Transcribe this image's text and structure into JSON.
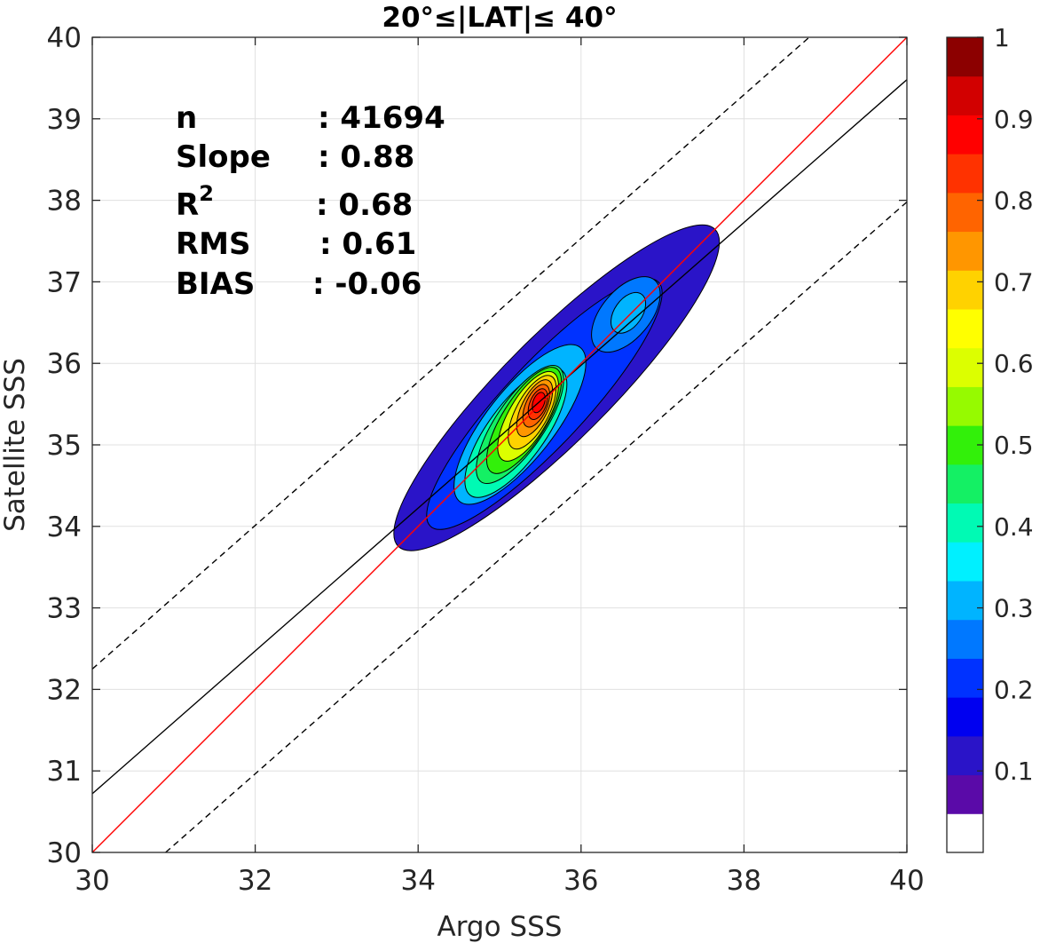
{
  "chart_data": {
    "type": "contour",
    "title": "20°≤|LAT|≤ 40°",
    "xlabel": "Argo SSS",
    "ylabel": "Satellite SSS",
    "xlim": [
      30,
      40
    ],
    "ylim": [
      30,
      40
    ],
    "xticks": [
      "30",
      "32",
      "34",
      "36",
      "38",
      "40"
    ],
    "yticks": [
      "30",
      "31",
      "32",
      "33",
      "34",
      "35",
      "36",
      "37",
      "38",
      "39",
      "40"
    ],
    "grid": true,
    "stats": [
      {
        "label": "n",
        "value": ": 41694"
      },
      {
        "label": "Slope",
        "value": ": 0.88"
      },
      {
        "label": "R",
        "sup": "2",
        "value": ": 0.68"
      },
      {
        "label": "RMS",
        "value": ": 0.61"
      },
      {
        "label": "BIAS",
        "value": ": -0.06"
      }
    ],
    "lines": {
      "one_to_one": {
        "color": "#ff0000",
        "points": [
          [
            30,
            30
          ],
          [
            40,
            40
          ]
        ]
      },
      "regression": {
        "color": "#000000",
        "slope": 0.88,
        "points": [
          [
            30,
            30.72
          ],
          [
            40,
            39.48
          ]
        ]
      },
      "upper_bound": {
        "color": "#000000",
        "dashed": true,
        "points": [
          [
            30,
            32.25
          ],
          [
            38.8,
            40
          ]
        ]
      },
      "lower_bound": {
        "color": "#000000",
        "dashed": true,
        "points": [
          [
            30.9,
            30
          ],
          [
            40,
            37.98
          ]
        ]
      }
    },
    "density_peaks": [
      {
        "x": 35.45,
        "y": 35.5,
        "value": 1.0
      },
      {
        "x": 36.55,
        "y": 36.6,
        "value": 0.32
      }
    ],
    "colorbar": {
      "range": [
        0,
        1
      ],
      "ticks": [
        "0.1",
        "0.2",
        "0.3",
        "0.4",
        "0.5",
        "0.6",
        "0.7",
        "0.8",
        "0.9",
        "1"
      ],
      "colors": [
        "#ffffff",
        "#5a0aa8",
        "#2a14c8",
        "#0000f0",
        "#0032ff",
        "#0078ff",
        "#00b4ff",
        "#00f0ff",
        "#00fab4",
        "#14f064",
        "#32f00a",
        "#96fa00",
        "#dcff00",
        "#ffff00",
        "#ffd200",
        "#ff9600",
        "#ff6400",
        "#ff3200",
        "#ff0000",
        "#d20000",
        "#8c0000"
      ]
    }
  }
}
